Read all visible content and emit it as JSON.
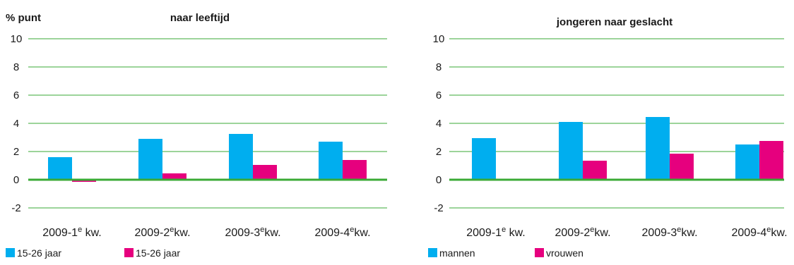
{
  "chart_data": [
    {
      "type": "bar",
      "title": "naar leeftijd",
      "ylabel": "% punt",
      "ylim": [
        -2,
        10
      ],
      "yticks": [
        "-2",
        "0",
        "2",
        "4",
        "6",
        "8",
        "10"
      ],
      "categories": [
        "2009-1e kw.",
        "2009-2ekw.",
        "2009-3ekw.",
        "2009-4ekw."
      ],
      "series": [
        {
          "name": "15-26 jaar",
          "color": "#00aeef",
          "values": [
            1.6,
            2.9,
            3.25,
            2.7
          ]
        },
        {
          "name": "15-26 jaar",
          "color": "#e6007e",
          "values": [
            -0.15,
            0.45,
            1.05,
            1.4
          ]
        }
      ],
      "grid": true,
      "legend_position": "bottom-left"
    },
    {
      "type": "bar",
      "title": "jongeren naar geslacht",
      "ylabel": "",
      "ylim": [
        -2,
        10
      ],
      "yticks": [
        "-2",
        "0",
        "2",
        "4",
        "6",
        "8",
        "10"
      ],
      "categories": [
        "2009-1e kw.",
        "2009-2ekw.",
        "2009-3ekw.",
        "2009-4ekw."
      ],
      "series": [
        {
          "name": "mannen",
          "color": "#00aeef",
          "values": [
            2.95,
            4.1,
            4.45,
            2.5
          ]
        },
        {
          "name": "vrouwen",
          "color": "#e6007e",
          "values": [
            -0.05,
            1.35,
            1.85,
            2.75
          ]
        }
      ],
      "grid": true,
      "legend_position": "bottom-left"
    }
  ]
}
